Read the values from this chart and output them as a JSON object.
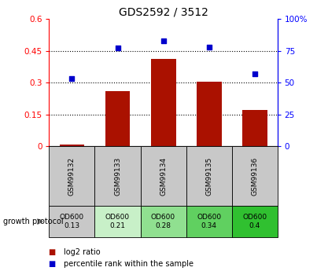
{
  "title": "GDS2592 / 3512",
  "samples": [
    "GSM99132",
    "GSM99133",
    "GSM99134",
    "GSM99135",
    "GSM99136"
  ],
  "log2_ratio": [
    0.01,
    0.26,
    0.41,
    0.305,
    0.17
  ],
  "percentile_rank": [
    53,
    77,
    83,
    78,
    57
  ],
  "left_ylim": [
    0,
    0.6
  ],
  "right_ylim": [
    0,
    100
  ],
  "left_yticks": [
    0,
    0.15,
    0.3,
    0.45,
    0.6
  ],
  "right_yticks": [
    0,
    25,
    50,
    75,
    100
  ],
  "left_ytick_labels": [
    "0",
    "0.15",
    "0.3",
    "0.45",
    "0.6"
  ],
  "right_ytick_labels": [
    "0",
    "25",
    "50",
    "75",
    "100%"
  ],
  "bar_color": "#AA1100",
  "scatter_color": "#0000CC",
  "bg_color": "#FFFFFF",
  "protocol_label": "growth protocol",
  "protocol_row": [
    "OD600\n0.13",
    "OD600\n0.21",
    "OD600\n0.28",
    "OD600\n0.34",
    "OD600\n0.4"
  ],
  "protocol_colors": [
    "#C8C8C8",
    "#C8F0C8",
    "#90E090",
    "#60D060",
    "#30C030"
  ],
  "sample_box_color": "#C8C8C8",
  "legend_bar_label": "log2 ratio",
  "legend_scatter_label": "percentile rank within the sample"
}
